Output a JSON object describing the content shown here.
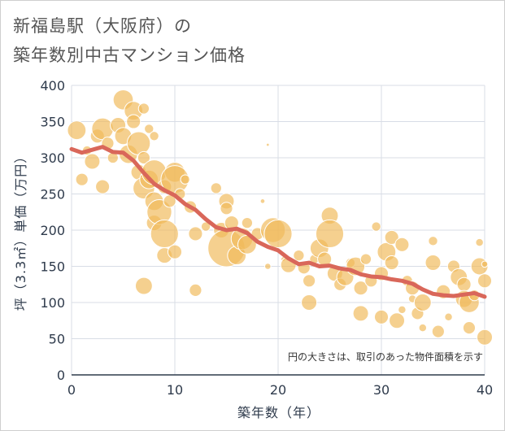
{
  "title": {
    "line1": "新福島駅（大阪府）の",
    "line2": "築年数別中古マンション価格"
  },
  "chart_data": {
    "type": "scatter",
    "xlabel": "築年数（年）",
    "ylabel": "坪（3.3㎡）単価（万円）",
    "xlim": [
      0,
      40
    ],
    "ylim": [
      0,
      400
    ],
    "xticks": [
      "0",
      "10",
      "20",
      "30",
      "40"
    ],
    "yticks": [
      "0",
      "50",
      "100",
      "150",
      "200",
      "250",
      "300",
      "350",
      "400"
    ],
    "grid": true,
    "annotation": "円の大きさは、取引のあった物件面積を示す",
    "colors": {
      "bubble": "#f0b95a",
      "trend": "#d9675a",
      "grid": "#d8dde6"
    },
    "bubbles": [
      [
        0.5,
        338,
        12
      ],
      [
        1,
        270,
        8
      ],
      [
        1.5,
        310,
        6
      ],
      [
        2,
        295,
        10
      ],
      [
        2.5,
        330,
        9
      ],
      [
        3,
        340,
        14
      ],
      [
        3,
        260,
        9
      ],
      [
        3.5,
        320,
        8
      ],
      [
        4,
        300,
        7
      ],
      [
        4.5,
        345,
        10
      ],
      [
        5,
        380,
        13
      ],
      [
        5,
        330,
        11
      ],
      [
        5.5,
        305,
        12
      ],
      [
        6,
        365,
        12
      ],
      [
        6,
        350,
        9
      ],
      [
        6.5,
        320,
        15
      ],
      [
        6.5,
        280,
        10
      ],
      [
        7,
        368,
        7
      ],
      [
        7,
        300,
        8
      ],
      [
        7,
        258,
        14
      ],
      [
        7,
        123,
        11
      ],
      [
        7.5,
        340,
        6
      ],
      [
        7.5,
        270,
        12
      ],
      [
        8,
        280,
        16
      ],
      [
        8,
        240,
        12
      ],
      [
        8,
        330,
        6
      ],
      [
        8,
        210,
        10
      ],
      [
        8.5,
        225,
        16
      ],
      [
        9,
        260,
        9
      ],
      [
        9,
        195,
        18
      ],
      [
        9,
        165,
        10
      ],
      [
        9.5,
        240,
        8
      ],
      [
        10,
        280,
        13
      ],
      [
        10,
        270,
        18
      ],
      [
        10,
        170,
        9
      ],
      [
        10.5,
        250,
        7
      ],
      [
        11,
        270,
        6
      ],
      [
        11.5,
        232,
        8
      ],
      [
        12,
        195,
        9
      ],
      [
        12,
        117,
        8
      ],
      [
        13,
        205,
        6
      ],
      [
        14,
        258,
        7
      ],
      [
        14.5,
        200,
        10
      ],
      [
        15,
        240,
        10
      ],
      [
        15,
        230,
        8
      ],
      [
        15,
        175,
        24
      ],
      [
        15.5,
        210,
        9
      ],
      [
        16,
        165,
        12
      ],
      [
        16.5,
        188,
        14
      ],
      [
        17,
        180,
        12
      ],
      [
        17,
        210,
        7
      ],
      [
        18,
        195,
        8
      ],
      [
        18.5,
        240,
        3
      ],
      [
        19,
        318,
        2
      ],
      [
        19,
        150,
        4
      ],
      [
        19.5,
        200,
        16
      ],
      [
        20,
        195,
        18
      ],
      [
        20.5,
        160,
        3
      ],
      [
        21,
        152,
        10
      ],
      [
        22,
        165,
        7
      ],
      [
        22.5,
        148,
        8
      ],
      [
        23,
        130,
        8
      ],
      [
        23,
        100,
        10
      ],
      [
        23.5,
        160,
        6
      ],
      [
        24,
        175,
        12
      ],
      [
        24.5,
        160,
        9
      ],
      [
        25,
        220,
        11
      ],
      [
        25,
        195,
        18
      ],
      [
        25.5,
        140,
        10
      ],
      [
        26,
        125,
        8
      ],
      [
        26.5,
        135,
        11
      ],
      [
        27,
        155,
        6
      ],
      [
        27.5,
        150,
        12
      ],
      [
        28,
        120,
        9
      ],
      [
        28,
        85,
        10
      ],
      [
        28.5,
        160,
        7
      ],
      [
        29,
        130,
        8
      ],
      [
        29.5,
        205,
        6
      ],
      [
        30,
        140,
        9
      ],
      [
        30,
        80,
        9
      ],
      [
        30.5,
        170,
        12
      ],
      [
        31,
        190,
        9
      ],
      [
        31,
        155,
        9
      ],
      [
        31.5,
        75,
        10
      ],
      [
        32,
        180,
        9
      ],
      [
        32,
        90,
        5
      ],
      [
        32.5,
        130,
        7
      ],
      [
        33,
        120,
        9
      ],
      [
        33,
        105,
        5
      ],
      [
        33.5,
        85,
        8
      ],
      [
        34,
        100,
        11
      ],
      [
        34,
        65,
        5
      ],
      [
        35,
        185,
        6
      ],
      [
        35,
        155,
        10
      ],
      [
        35.5,
        60,
        8
      ],
      [
        36,
        115,
        9
      ],
      [
        36.5,
        80,
        5
      ],
      [
        37,
        150,
        8
      ],
      [
        37.5,
        135,
        11
      ],
      [
        38,
        125,
        9
      ],
      [
        38,
        105,
        11
      ],
      [
        38.5,
        100,
        13
      ],
      [
        38.5,
        65,
        8
      ],
      [
        39,
        110,
        7
      ],
      [
        39.5,
        150,
        11
      ],
      [
        39.5,
        183,
        5
      ],
      [
        40,
        130,
        9
      ],
      [
        40,
        52,
        10
      ],
      [
        40,
        153,
        4
      ]
    ],
    "trend": {
      "name": "",
      "x": [
        0,
        1,
        2,
        3,
        4,
        5,
        6,
        7,
        8,
        9,
        10,
        11,
        12,
        13,
        14,
        15,
        16,
        17,
        18,
        19,
        20,
        21,
        22,
        23,
        24,
        25,
        26,
        27,
        28,
        29,
        30,
        31,
        32,
        33,
        34,
        35,
        36,
        37,
        38,
        39,
        40
      ],
      "y": [
        312,
        307,
        311,
        315,
        308,
        307,
        296,
        279,
        264,
        255,
        248,
        236,
        228,
        215,
        204,
        200,
        202,
        196,
        184,
        177,
        172,
        161,
        153,
        155,
        150,
        151,
        147,
        145,
        139,
        136,
        135,
        132,
        130,
        126,
        118,
        112,
        110,
        109,
        111,
        113,
        108
      ]
    }
  }
}
